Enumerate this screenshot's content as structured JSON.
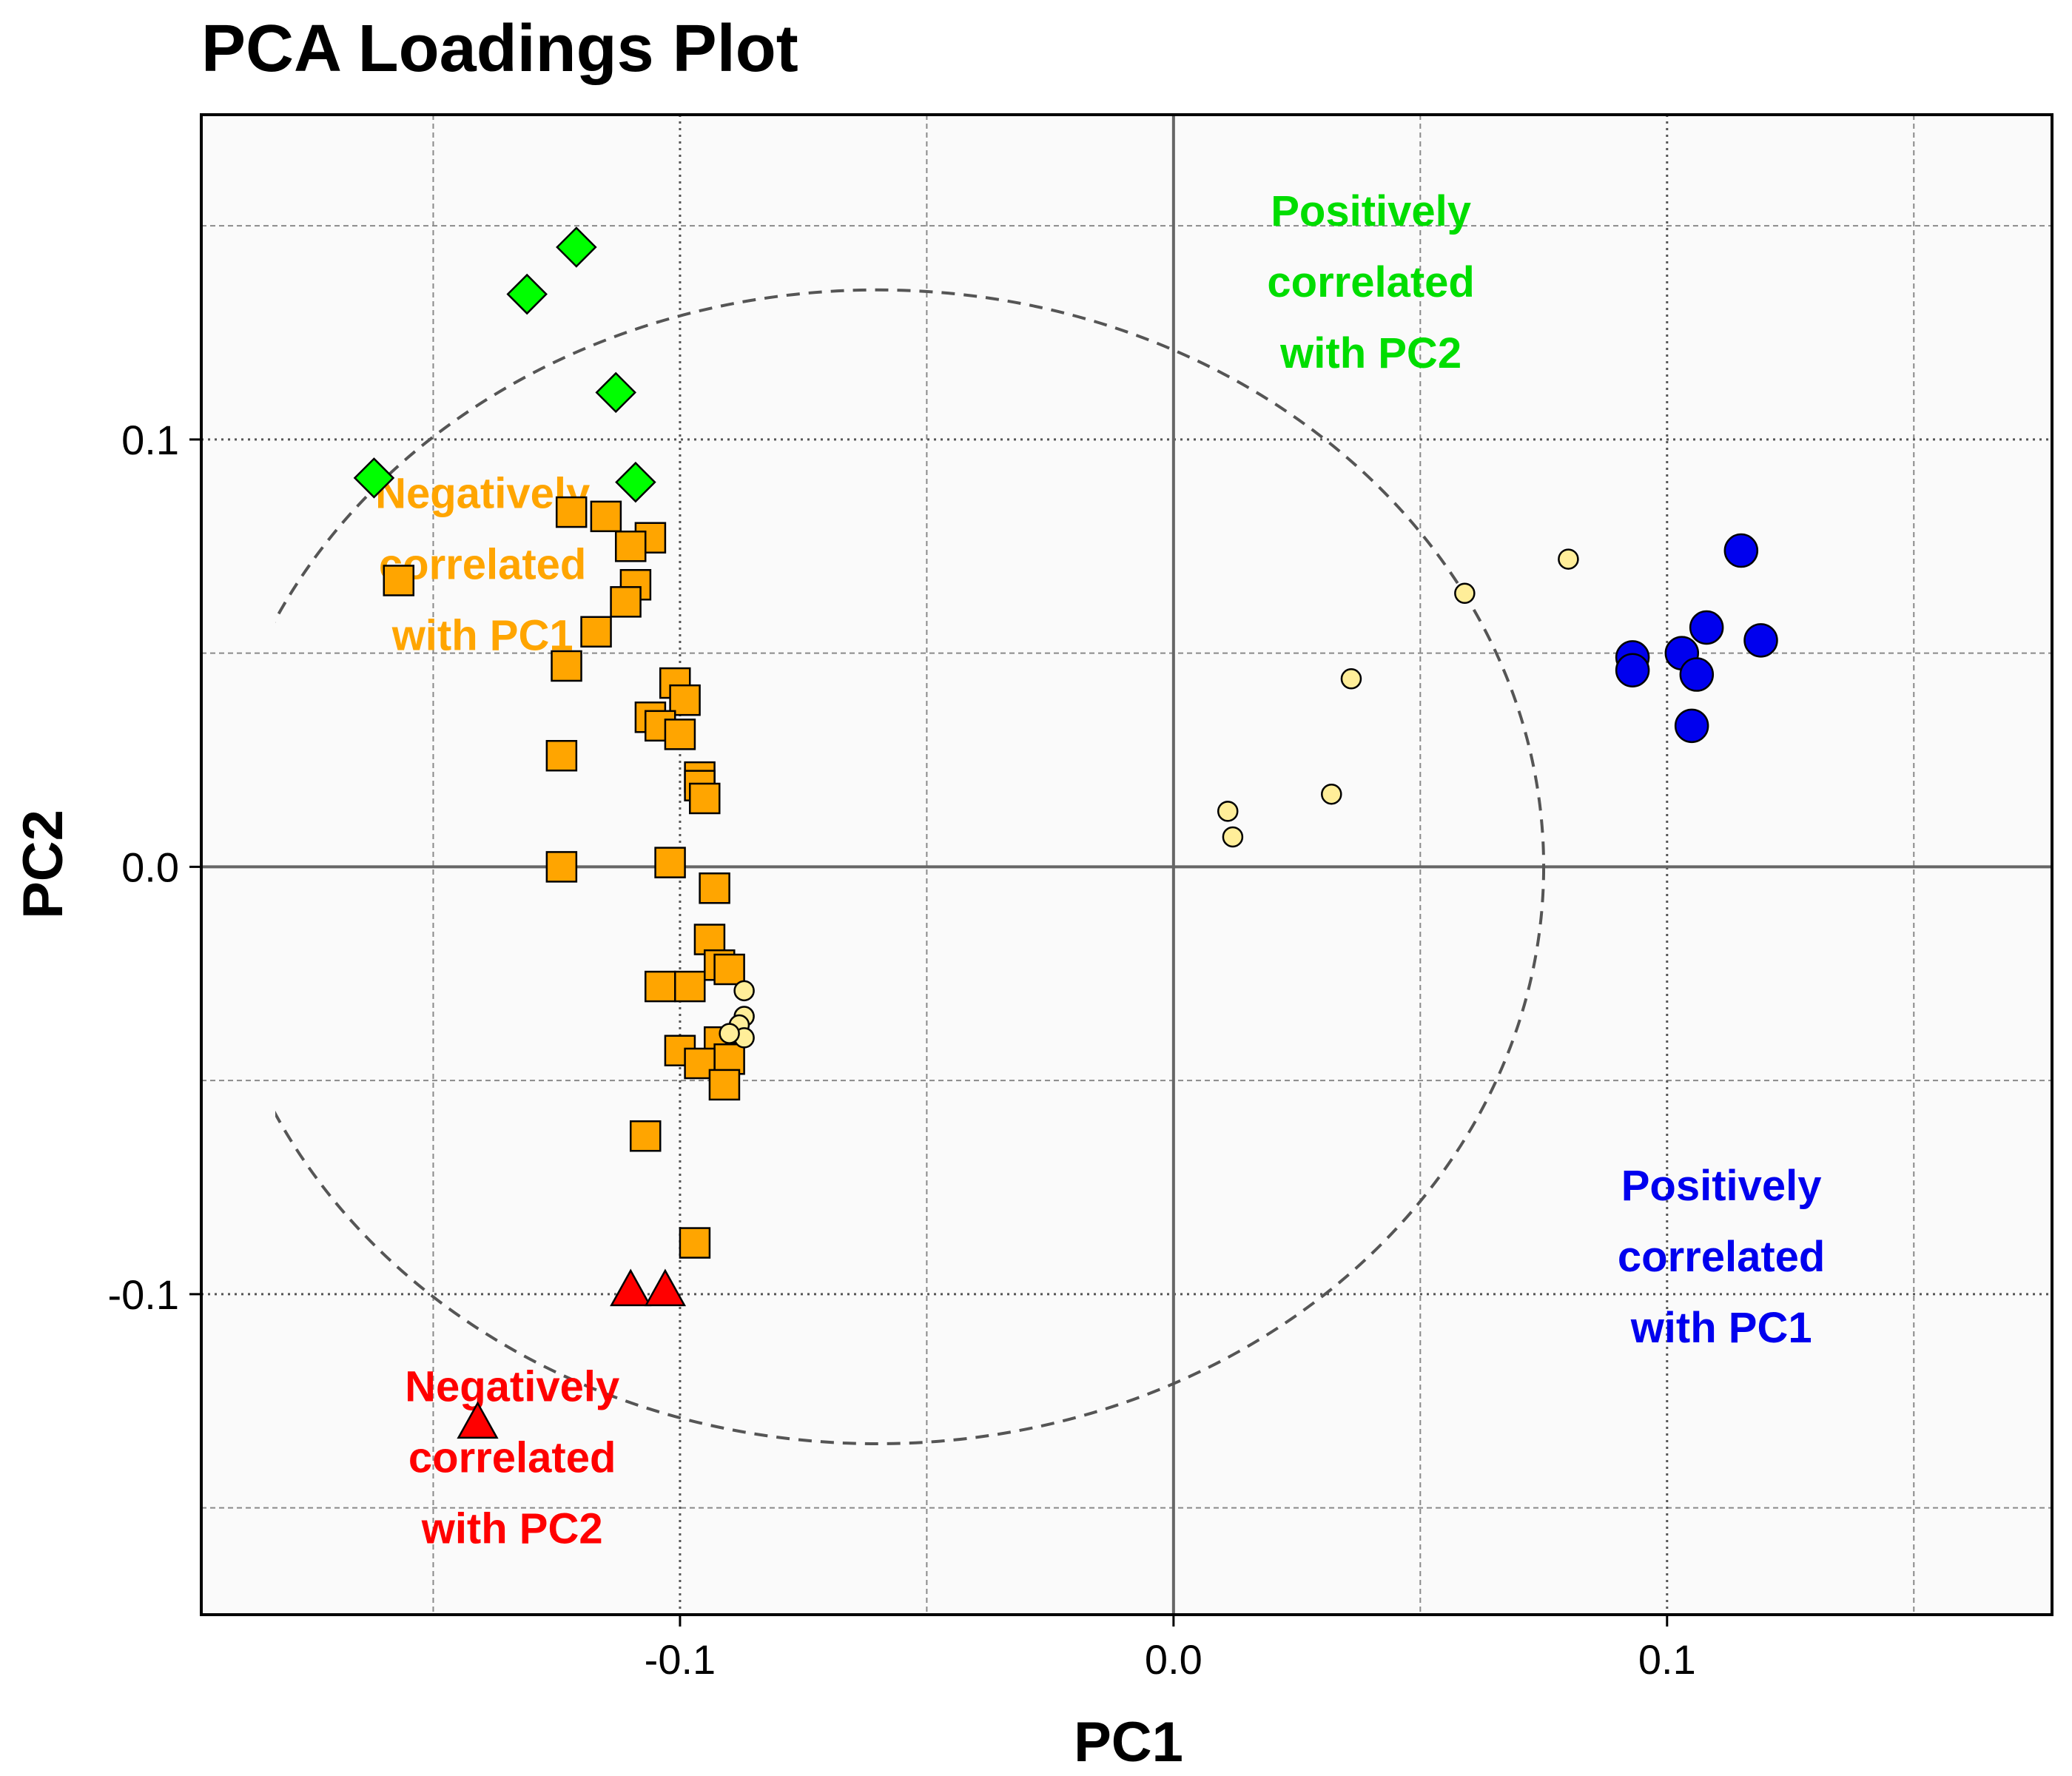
{
  "chart_data": {
    "type": "scatter",
    "title": "PCA Loadings Plot",
    "xlabel": "PC1",
    "ylabel": "PC2",
    "xlim": [
      -0.197,
      0.178
    ],
    "ylim": [
      -0.175,
      0.176
    ],
    "x_ticks": [
      -0.1,
      0.0,
      0.1
    ],
    "x_tick_labels": [
      "-0.1",
      "0.0",
      "0.1"
    ],
    "y_ticks": [
      -0.1,
      0.0,
      0.1
    ],
    "y_tick_labels": [
      "-0.1",
      "0.0",
      "0.1"
    ],
    "minor_gridlines_x": [
      -0.15,
      -0.05,
      0.05,
      0.15
    ],
    "minor_gridlines_y": [
      -0.15,
      -0.05,
      0.05,
      0.15
    ],
    "grid": true,
    "background_color": "#fafafa",
    "reference_lines": {
      "x": 0,
      "y": 0,
      "color": "#666666"
    },
    "circle": {
      "center": [
        -0.06,
        0.0
      ],
      "radius": 0.135,
      "style": "dashed",
      "color": "#555555"
    },
    "annotations": [
      {
        "lines": [
          "Positively",
          "correlated",
          "with PC2"
        ],
        "x": 0.04,
        "y": 0.15,
        "color": "#00dd00"
      },
      {
        "lines": [
          "Negatively",
          "correlated",
          "with PC1"
        ],
        "x": -0.14,
        "y": 0.084,
        "color": "#ffa500"
      },
      {
        "lines": [
          "Positively",
          "correlated",
          "with PC1"
        ],
        "x": 0.111,
        "y": -0.078,
        "color": "#0000ee"
      },
      {
        "lines": [
          "Negatively",
          "correlated",
          "with PC2"
        ],
        "x": -0.134,
        "y": -0.125,
        "color": "#ff0000"
      }
    ],
    "series": [
      {
        "marker": "diamond",
        "color": "#00ff00",
        "points": [
          [
            -0.121,
            0.145
          ],
          [
            -0.131,
            0.134
          ],
          [
            -0.113,
            0.111
          ],
          [
            -0.109,
            0.09
          ],
          [
            -0.162,
            0.091
          ]
        ]
      },
      {
        "marker": "square",
        "color": "#ffa500",
        "points": [
          [
            -0.157,
            0.067
          ],
          [
            -0.122,
            0.083
          ],
          [
            -0.115,
            0.082
          ],
          [
            -0.106,
            0.077
          ],
          [
            -0.11,
            0.075
          ],
          [
            -0.109,
            0.066
          ],
          [
            -0.111,
            0.062
          ],
          [
            -0.117,
            0.055
          ],
          [
            -0.123,
            0.047
          ],
          [
            -0.101,
            0.043
          ],
          [
            -0.099,
            0.039
          ],
          [
            -0.106,
            0.035
          ],
          [
            -0.104,
            0.033
          ],
          [
            -0.1,
            0.031
          ],
          [
            -0.096,
            0.021
          ],
          [
            -0.096,
            0.019
          ],
          [
            -0.095,
            0.016
          ],
          [
            -0.124,
            0.026
          ],
          [
            -0.124,
            0.0
          ],
          [
            -0.102,
            0.001
          ],
          [
            -0.093,
            -0.005
          ],
          [
            -0.094,
            -0.017
          ],
          [
            -0.092,
            -0.023
          ],
          [
            -0.09,
            -0.024
          ],
          [
            -0.104,
            -0.028
          ],
          [
            -0.098,
            -0.028
          ],
          [
            -0.092,
            -0.041
          ],
          [
            -0.09,
            -0.045
          ],
          [
            -0.1,
            -0.043
          ],
          [
            -0.096,
            -0.046
          ],
          [
            -0.091,
            -0.051
          ],
          [
            -0.107,
            -0.063
          ],
          [
            -0.097,
            -0.088
          ]
        ]
      },
      {
        "marker": "triangle",
        "color": "#ff0000",
        "points": [
          [
            -0.11,
            -0.099
          ],
          [
            -0.103,
            -0.099
          ],
          [
            -0.141,
            -0.13
          ]
        ]
      },
      {
        "marker": "circle-small",
        "color": "#ffee99",
        "points": [
          [
            0.08,
            0.072
          ],
          [
            0.059,
            0.064
          ],
          [
            0.036,
            0.044
          ],
          [
            0.032,
            0.017
          ],
          [
            0.011,
            0.013
          ],
          [
            0.012,
            0.007
          ],
          [
            -0.087,
            -0.029
          ],
          [
            -0.087,
            -0.035
          ],
          [
            -0.088,
            -0.037
          ],
          [
            -0.087,
            -0.04
          ],
          [
            -0.09,
            -0.039
          ]
        ]
      },
      {
        "marker": "circle",
        "color": "#0000ee",
        "points": [
          [
            0.115,
            0.074
          ],
          [
            0.093,
            0.049
          ],
          [
            0.093,
            0.046
          ],
          [
            0.103,
            0.05
          ],
          [
            0.106,
            0.045
          ],
          [
            0.105,
            0.033
          ],
          [
            0.108,
            0.056
          ],
          [
            0.119,
            0.053
          ]
        ]
      }
    ]
  }
}
